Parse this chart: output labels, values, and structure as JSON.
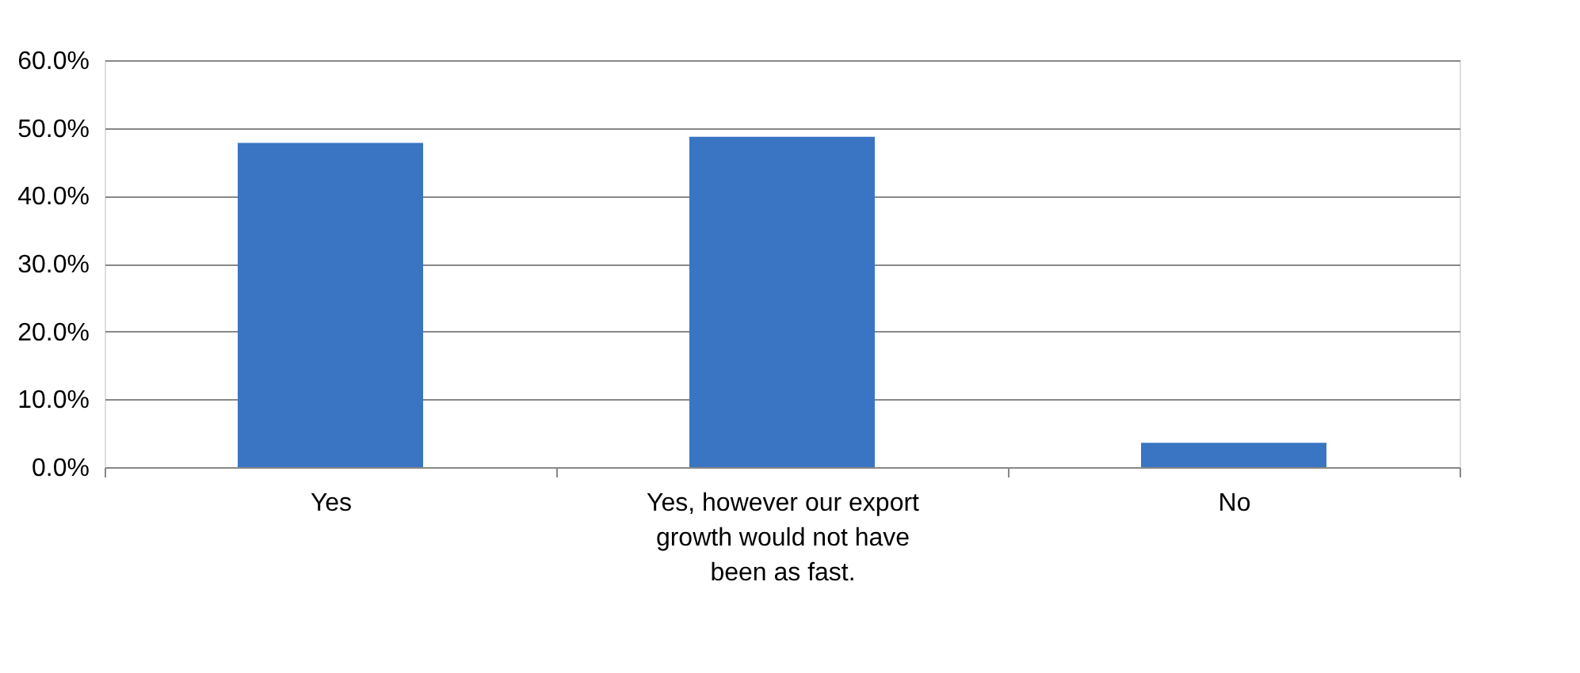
{
  "chart_data": {
    "type": "bar",
    "categories": [
      "Yes",
      "Yes, however our export growth would not have been as fast.",
      "No"
    ],
    "values": [
      47.8,
      48.7,
      3.6
    ],
    "color": "#3a75c4",
    "ylim": [
      0,
      60
    ],
    "yticks": [
      {
        "value": 0,
        "label": "0.0%"
      },
      {
        "value": 10,
        "label": "10.0%"
      },
      {
        "value": 20,
        "label": "20.0%"
      },
      {
        "value": 30,
        "label": "30.0%"
      },
      {
        "value": 40,
        "label": "40.0%"
      },
      {
        "value": 50,
        "label": "50.0%"
      },
      {
        "value": 60,
        "label": "60.0%"
      }
    ],
    "grid": "y"
  }
}
